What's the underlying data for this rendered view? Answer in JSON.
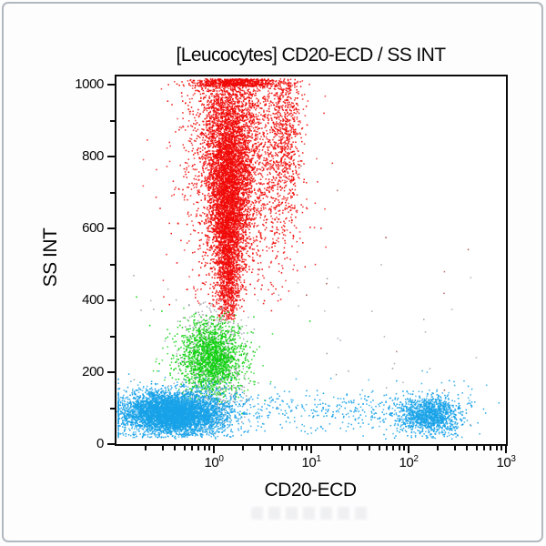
{
  "chart_data": {
    "type": "scatter",
    "subtype": "flow-cytometry-dot-plot",
    "title": "[Leucocytes] CD20-ECD / SS INT",
    "xlabel": "CD20-ECD",
    "ylabel": "SS INT",
    "x_scale": "log",
    "x_decades": [
      -1,
      3
    ],
    "x_tick_base": "10",
    "x_tick_exponents": [
      0,
      1,
      2,
      3
    ],
    "x_minor_mantissas": [
      2,
      3,
      4,
      5,
      6,
      7,
      8,
      9
    ],
    "y_scale": "linear",
    "y_range": [
      0,
      1023
    ],
    "y_major_ticks": [
      0,
      200,
      400,
      600,
      800,
      1000
    ],
    "y_minor_ticks": [
      100,
      300,
      500,
      700,
      900
    ],
    "grid": false,
    "legend": "none",
    "style": {
      "background": "#ffffff",
      "axis_color": "#0b0b0b",
      "text_color": "#070707",
      "frame_border_color": "#b2b8be",
      "red": "#ef0a08",
      "green": "#0fd00f",
      "blue": "#18a2e8",
      "gray": "#9aa0aa"
    },
    "populations": [
      {
        "name": "granulocytes-fringe",
        "color": "#ef0a08",
        "n": 2300,
        "x_mean": 0.27,
        "x_sd": 0.3,
        "y_mean": 800,
        "y_sd": 190,
        "y_clip": [
          370,
          1012
        ]
      },
      {
        "name": "granulocytes-right-streak",
        "color": "#ef0a08",
        "n": 600,
        "x_mean": 0.73,
        "x_sd": 0.085,
        "y_mean": 900,
        "y_sd": 150,
        "y_clip": [
          530,
          1012
        ]
      },
      {
        "name": "granulocytes-core",
        "color": "#ef0a08",
        "n": 5500,
        "x_mean": 0.145,
        "x_sd": 0.055,
        "x_sd_slope": 0.095,
        "y_mean": 700,
        "y_sd": 195,
        "y_clip": [
          345,
          1012
        ]
      },
      {
        "name": "granulocytes-saturated",
        "color": "#ef0a08",
        "n": 650,
        "x_mean": 0.25,
        "x_sd": 0.22,
        "y_dist": "uniform",
        "y_range": [
          995,
          1016
        ]
      },
      {
        "name": "sparse-outliers",
        "color": "#a34b4b",
        "n": 10,
        "x_dist": "uniform",
        "x_range": [
          0.8,
          2.8
        ],
        "y_dist": "uniform",
        "y_range": [
          150,
          900
        ]
      },
      {
        "name": "debris-ungated",
        "color": "#9aa0aa",
        "n": 560,
        "x_mean": 0.0,
        "x_sd": 0.15,
        "y_mean": 220,
        "y_sd": 100,
        "y_clip": [
          40,
          400
        ]
      },
      {
        "name": "debris-sparse",
        "color": "#9aa0aa",
        "n": 55,
        "x_dist": "uniform",
        "x_range": [
          -0.9,
          2.7
        ],
        "y_dist": "uniform",
        "y_range": [
          10,
          500
        ]
      },
      {
        "name": "monocytes",
        "color": "#0fd00f",
        "n": 1700,
        "x_mean": -0.03,
        "x_sd": 0.17,
        "y_mean": 240,
        "y_sd": 52,
        "y_clip": [
          110,
          380
        ]
      },
      {
        "name": "monocytes-outliers",
        "color": "#0fd00f",
        "n": 45,
        "x_mean": -0.05,
        "x_sd": 0.38,
        "y_mean": 240,
        "y_sd": 85,
        "y_clip": [
          80,
          420
        ]
      },
      {
        "name": "lymphocytes",
        "color": "#18a2e8",
        "n": 3900,
        "x_mean": -0.42,
        "x_sd": 0.3,
        "x_clip": [
          -0.98,
          0.9
        ],
        "x_clamp_only": true,
        "y_mean": 85,
        "y_sd": 33,
        "y_clip": [
          18,
          210
        ]
      },
      {
        "name": "lymphocytes-dense",
        "color": "#18a2e8",
        "n": 1400,
        "x_mean": -0.4,
        "x_sd": 0.19,
        "y_mean": 82,
        "y_sd": 24,
        "y_clip": [
          25,
          160
        ]
      },
      {
        "name": "lymphocytes-band",
        "color": "#18a2e8",
        "n": 520,
        "x_dist": "uniform",
        "x_range": [
          -0.9,
          2.0
        ],
        "y_mean": 92,
        "y_sd": 32,
        "y_clip": [
          15,
          195
        ]
      },
      {
        "name": "b-cells-cd20pos",
        "color": "#18a2e8",
        "n": 1050,
        "x_mean": 2.22,
        "x_sd": 0.14,
        "y_mean": 78,
        "y_sd": 25,
        "y_clip": [
          15,
          165
        ]
      },
      {
        "name": "b-cells-halo",
        "color": "#18a2e8",
        "n": 270,
        "x_mean": 2.2,
        "x_sd": 0.3,
        "x_clip": [
          1.5,
          2.95
        ],
        "y_mean": 88,
        "y_sd": 40,
        "y_clip": [
          12,
          215
        ]
      }
    ]
  }
}
